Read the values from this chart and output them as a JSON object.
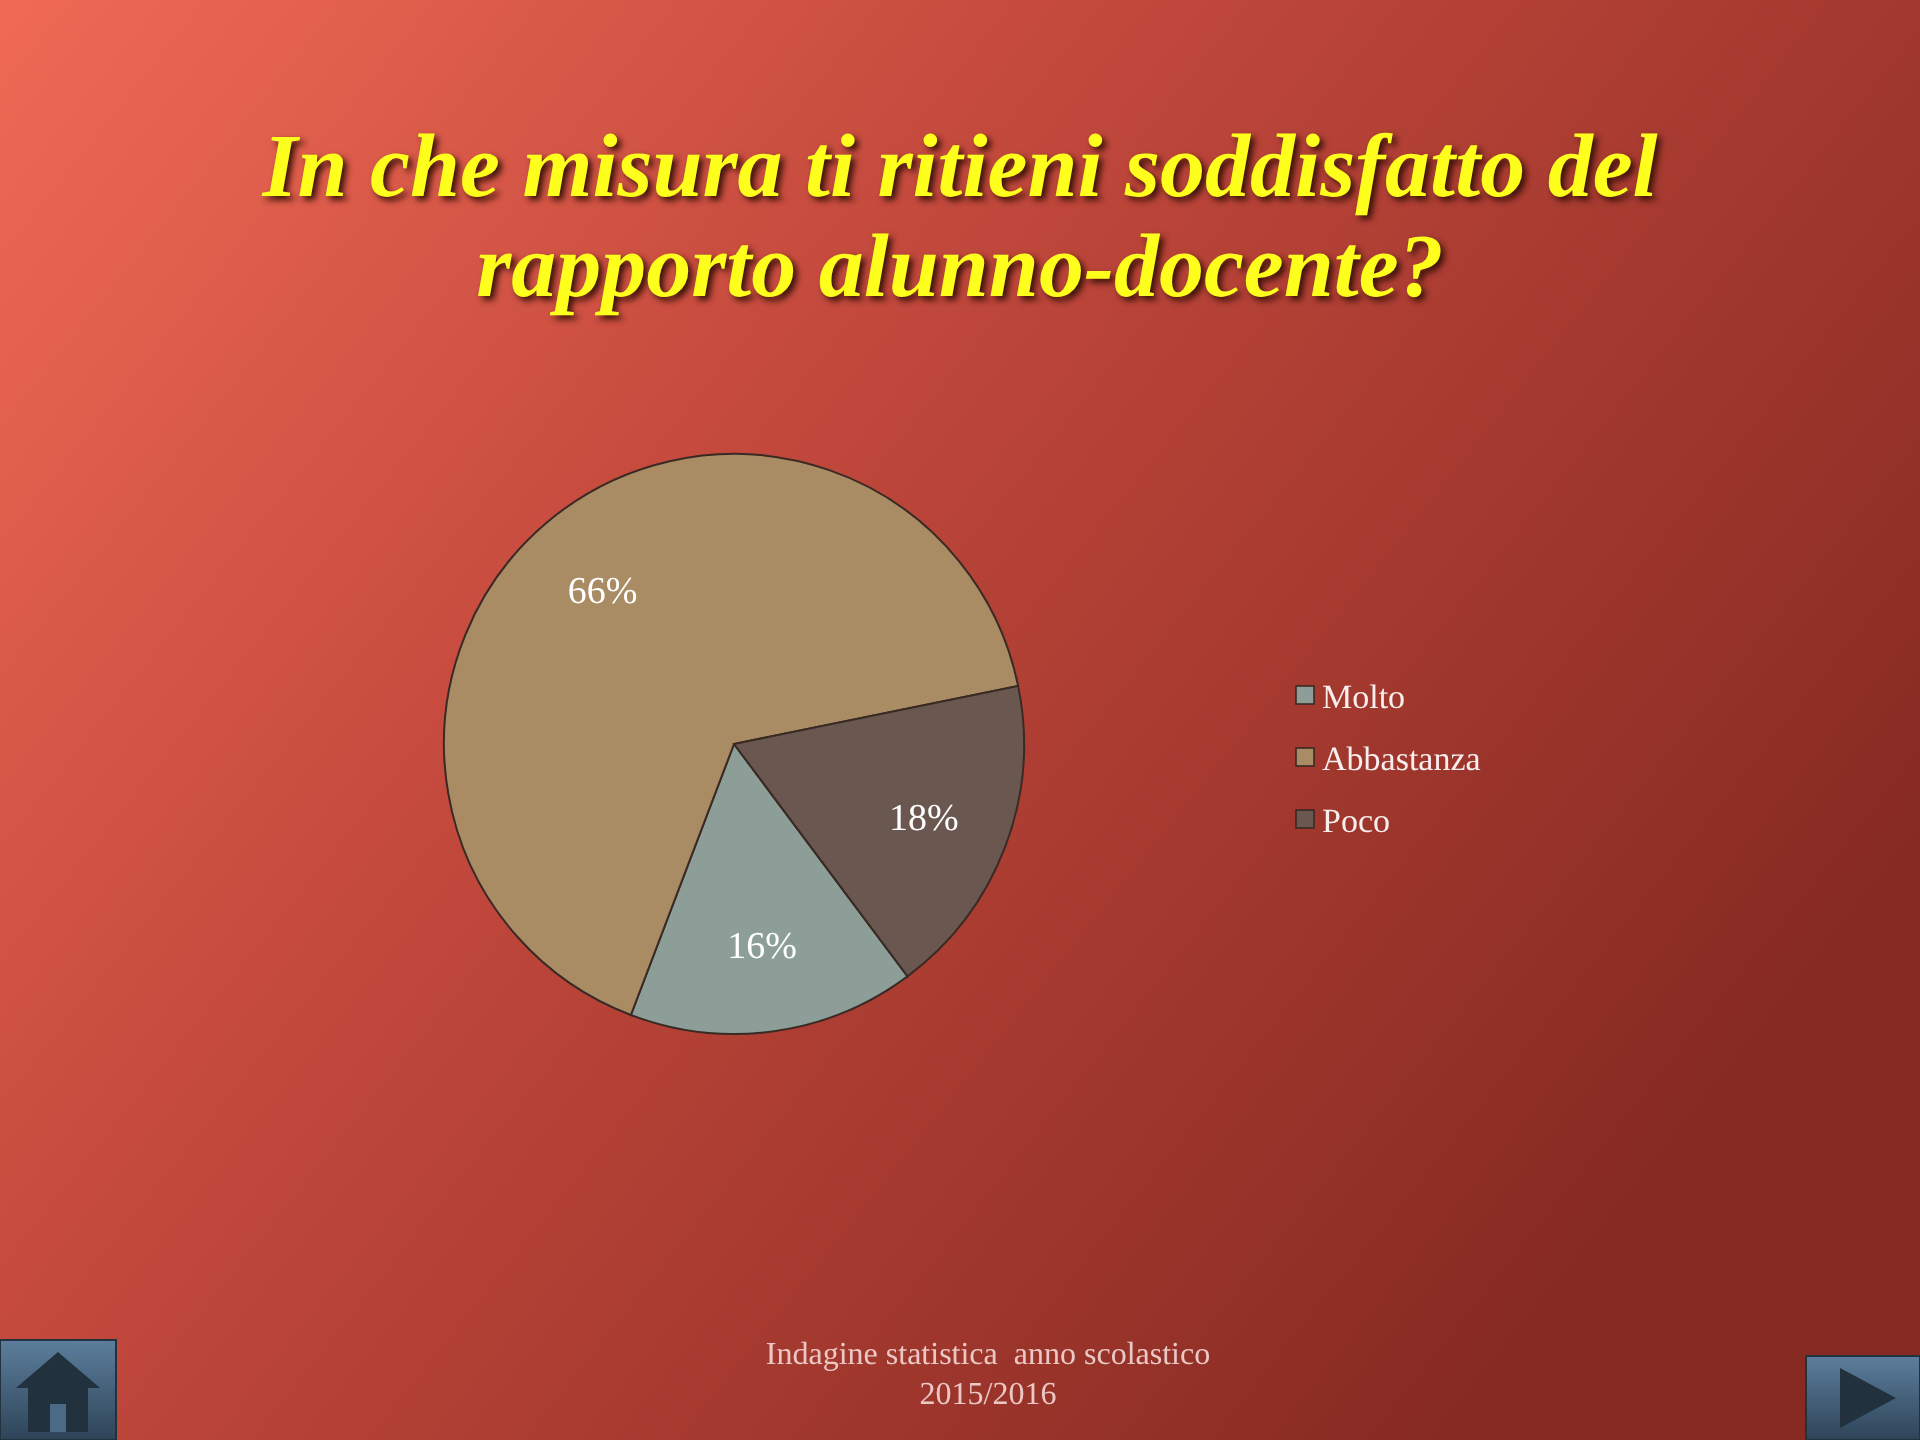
{
  "chart_data": {
    "type": "pie",
    "title": "In che misura ti ritieni soddisfatto del rapporto alunno-docente?",
    "categories": [
      "Molto",
      "Abbastanza",
      "Poco"
    ],
    "values": [
      16,
      66,
      18
    ],
    "colors": [
      "#8c9e97",
      "#a98c64",
      "#6a5850"
    ],
    "value_labels": [
      "16%",
      "66%",
      "18%"
    ],
    "legend": "right",
    "annotations": [
      "Indagine statistica  anno scolastico 2015/2016"
    ]
  }
}
